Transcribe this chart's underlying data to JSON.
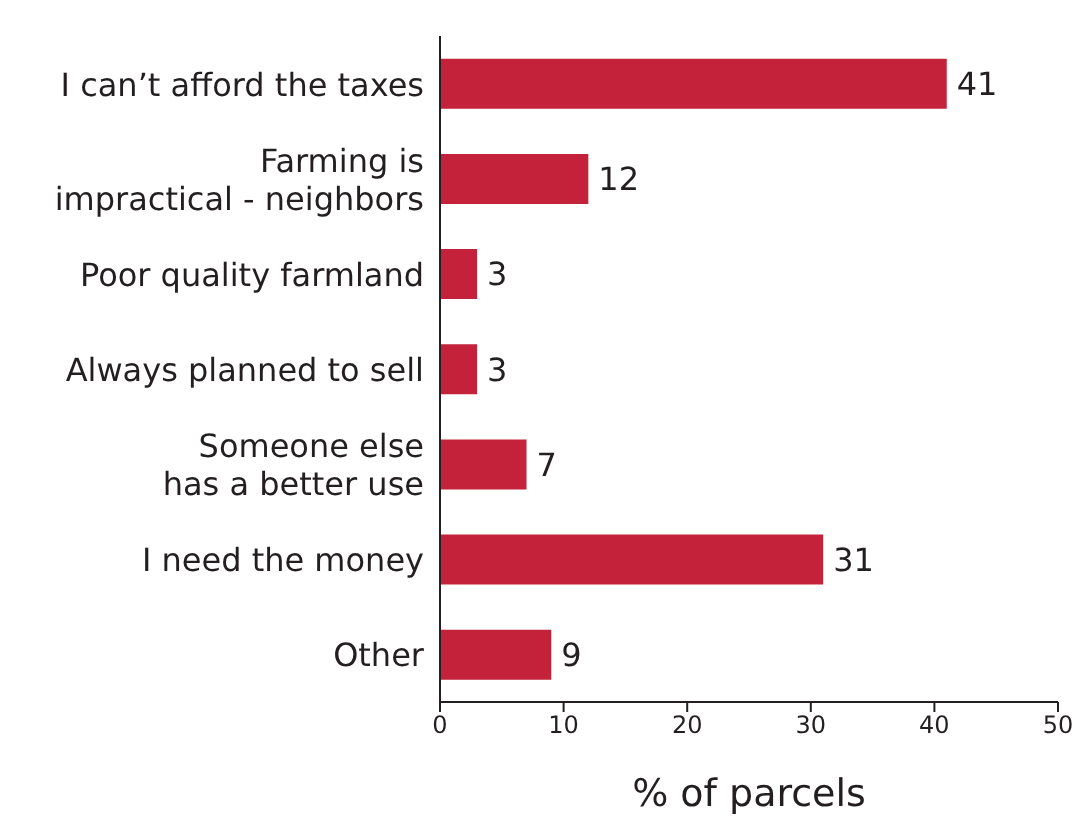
{
  "chart_data": {
    "type": "bar",
    "orientation": "horizontal",
    "categories": [
      "I can’t afford the taxes",
      "Farming is\nimpractical - neighbors",
      "Poor quality farmland",
      "Always planned to sell",
      "Someone else\nhas a better use",
      "I need the money",
      "Other"
    ],
    "values": [
      41,
      12,
      3,
      3,
      7,
      31,
      9
    ],
    "color": "#c3223a",
    "xlim": [
      0,
      50
    ],
    "xticks": [
      0,
      10,
      20,
      30,
      40,
      50
    ],
    "xlabel": "% of parcels",
    "data_labels": true,
    "grid": false,
    "legend": false
  }
}
